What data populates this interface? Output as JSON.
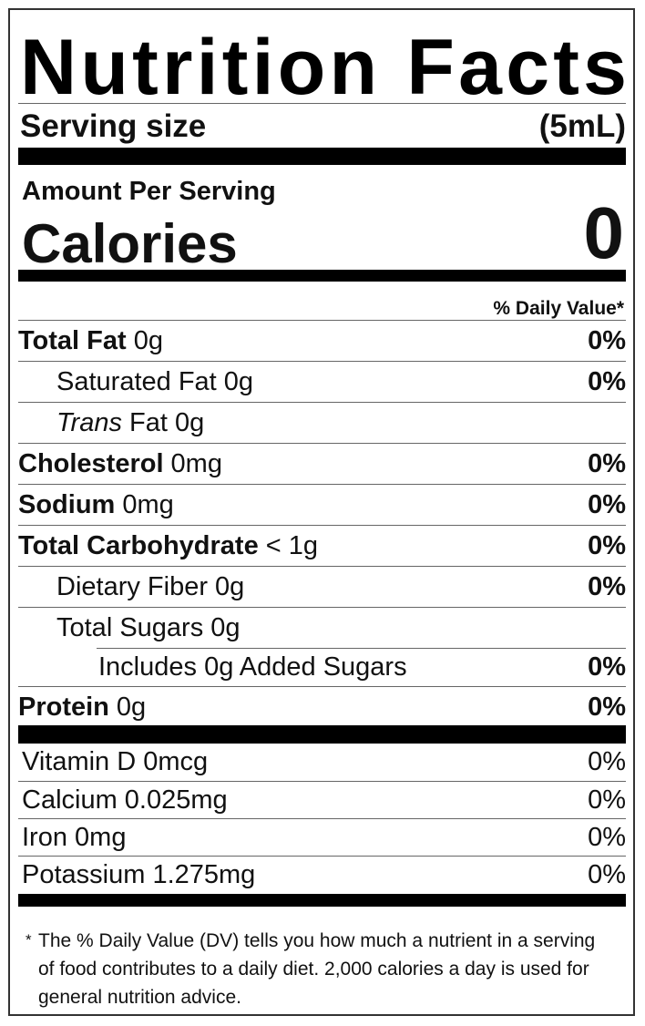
{
  "title": "Nutrition Facts",
  "serving": {
    "label": "Serving size",
    "value": "(5mL)"
  },
  "amount_per_serving": "Amount Per Serving",
  "calories": {
    "label": "Calories",
    "value": "0"
  },
  "dv_header": "% Daily Value*",
  "nutrients": [
    {
      "name": "Total Fat",
      "amount": "0g",
      "dv": "0%"
    },
    {
      "name": "Saturated Fat",
      "amount": "0g",
      "dv": "0%"
    },
    {
      "name": "Trans",
      "amount": "Fat 0g"
    },
    {
      "name": "Cholesterol",
      "amount": "0mg",
      "dv": "0%"
    },
    {
      "name": "Sodium",
      "amount": "0mg",
      "dv": "0%"
    },
    {
      "name": "Total Carbohydrate",
      "amount": "< 1g",
      "dv": "0%"
    },
    {
      "name": "Dietary Fiber",
      "amount": "0g",
      "dv": "0%"
    },
    {
      "name": "Total Sugars",
      "amount": "0g"
    },
    {
      "name": "Includes 0g Added Sugars",
      "dv": "0%"
    },
    {
      "name": "Protein",
      "amount": "0g",
      "dv": "0%"
    }
  ],
  "vitamins": [
    {
      "name": "Vitamin D 0mcg",
      "dv": "0%"
    },
    {
      "name": "Calcium 0.025mg",
      "dv": "0%"
    },
    {
      "name": "Iron 0mg",
      "dv": "0%"
    },
    {
      "name": "Potassium 1.275mg",
      "dv": "0%"
    }
  ],
  "footnote": {
    "marker": "*",
    "text": "The % Daily Value (DV) tells you how much a nutrient in a serving of food contributes to a daily diet. 2,000 calories a day is used for general nutrition advice."
  }
}
